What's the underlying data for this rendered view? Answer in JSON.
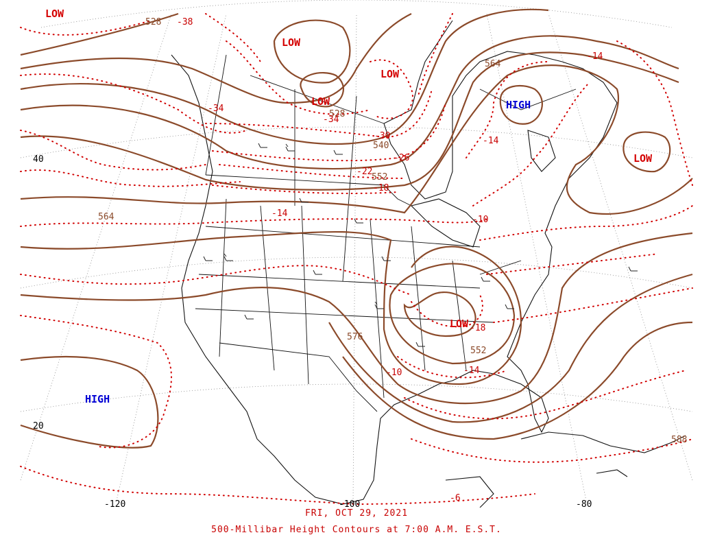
{
  "map": {
    "lows": [
      "LOW",
      "LOW",
      "LOW",
      "LOW",
      "LOW",
      "LOW"
    ],
    "highs": [
      "HIGH",
      "HIGH"
    ],
    "height_labels": [
      "528",
      "528",
      "540",
      "552",
      "564",
      "564",
      "552",
      "576",
      "588"
    ],
    "temp_labels": [
      "-38",
      "-34",
      "-34",
      "-30",
      "-26",
      "-22",
      "-18",
      "-14",
      "-14",
      "-14",
      "-10",
      "-18",
      "-14",
      "-10",
      "-6"
    ],
    "lat_labels": [
      "40",
      "20"
    ],
    "lon_labels": [
      "-120",
      "-100",
      "-80"
    ],
    "colors": {
      "height": "#8b4a2a",
      "temperature": "#d10000",
      "low": "#d40000",
      "high": "#0000d4"
    }
  },
  "caption": {
    "date": "FRI, OCT 29, 2021",
    "title": "500-Millibar Height Contours at 7:00 A.M. E.S.T."
  }
}
